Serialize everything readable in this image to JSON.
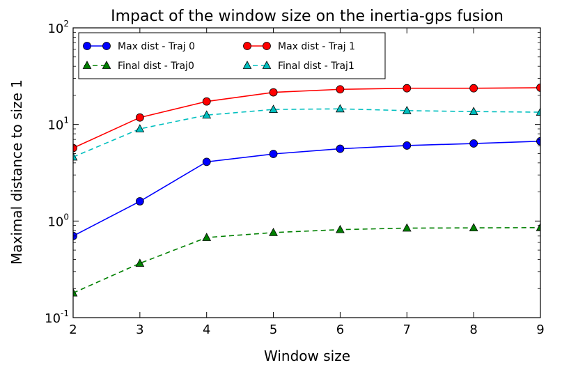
{
  "chart_data": {
    "type": "line",
    "title": "Impact of the window size on the inertia-gps fusion",
    "xlabel": "Window size",
    "ylabel": "Maximal distance to size 1",
    "yscale": "log",
    "xlim": [
      2,
      9
    ],
    "ylim": [
      0.1,
      100
    ],
    "x_ticks": [
      "2",
      "3",
      "4",
      "5",
      "6",
      "7",
      "8",
      "9"
    ],
    "y_ticks": [
      {
        "base": "10",
        "exp": "-1"
      },
      {
        "base": "10",
        "exp": "0"
      },
      {
        "base": "10",
        "exp": "1"
      },
      {
        "base": "10",
        "exp": "2"
      }
    ],
    "grid": false,
    "legend_position": "top-left",
    "x": [
      2,
      3,
      4,
      5,
      6,
      7,
      8,
      9
    ],
    "series": [
      {
        "name": "Max dist - Traj 0",
        "color": "#0000ff",
        "marker": "circle",
        "linestyle": "solid",
        "values": [
          0.7,
          1.6,
          4.1,
          4.95,
          5.6,
          6.05,
          6.35,
          6.7
        ]
      },
      {
        "name": "Max dist - Traj 1",
        "color": "#ff0000",
        "marker": "circle",
        "linestyle": "solid",
        "values": [
          5.7,
          11.8,
          17.3,
          21.5,
          23.1,
          23.7,
          23.7,
          24.0
        ]
      },
      {
        "name": "Final dist - Traj0",
        "color": "#008000",
        "marker": "triangle",
        "linestyle": "dashed",
        "values": [
          0.18,
          0.365,
          0.675,
          0.76,
          0.815,
          0.845,
          0.85,
          0.855
        ]
      },
      {
        "name": "Final dist - Traj1",
        "color": "#00bfbf",
        "marker": "triangle",
        "linestyle": "dashed",
        "values": [
          4.6,
          9.0,
          12.5,
          14.3,
          14.5,
          13.9,
          13.6,
          13.4
        ]
      }
    ]
  }
}
